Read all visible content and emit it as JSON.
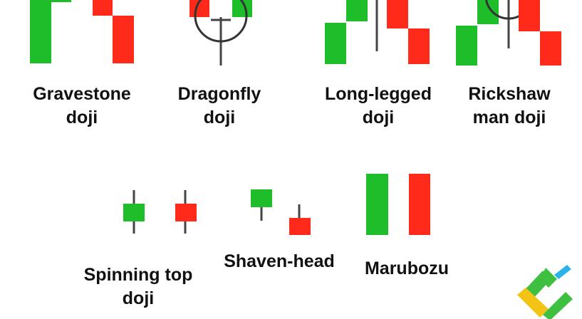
{
  "colors": {
    "bullish": "#1ebe2a",
    "bearish": "#ff2a1a",
    "wick": "#444444",
    "text": "#111111",
    "logo_green": "#3fbf3f",
    "logo_yellow": "#f3c316",
    "logo_cyan": "#2ab3e8"
  },
  "patterns": [
    {
      "id": "gravestone",
      "line1": "Gravestone",
      "line2": "doji"
    },
    {
      "id": "dragonfly",
      "line1": "Dragonfly",
      "line2": "doji"
    },
    {
      "id": "long-legged",
      "line1": "Long-legged",
      "line2": "doji"
    },
    {
      "id": "rickshaw",
      "line1": "Rickshaw",
      "line2": "man doji"
    },
    {
      "id": "spinning-top",
      "line1": "Spinning top",
      "line2": "doji"
    },
    {
      "id": "shaven-head",
      "line1": "Shaven-head",
      "line2": ""
    },
    {
      "id": "marubozu",
      "line1": "Marubozu",
      "line2": ""
    }
  ],
  "logo": {
    "icon": "brand-logo-icon"
  }
}
